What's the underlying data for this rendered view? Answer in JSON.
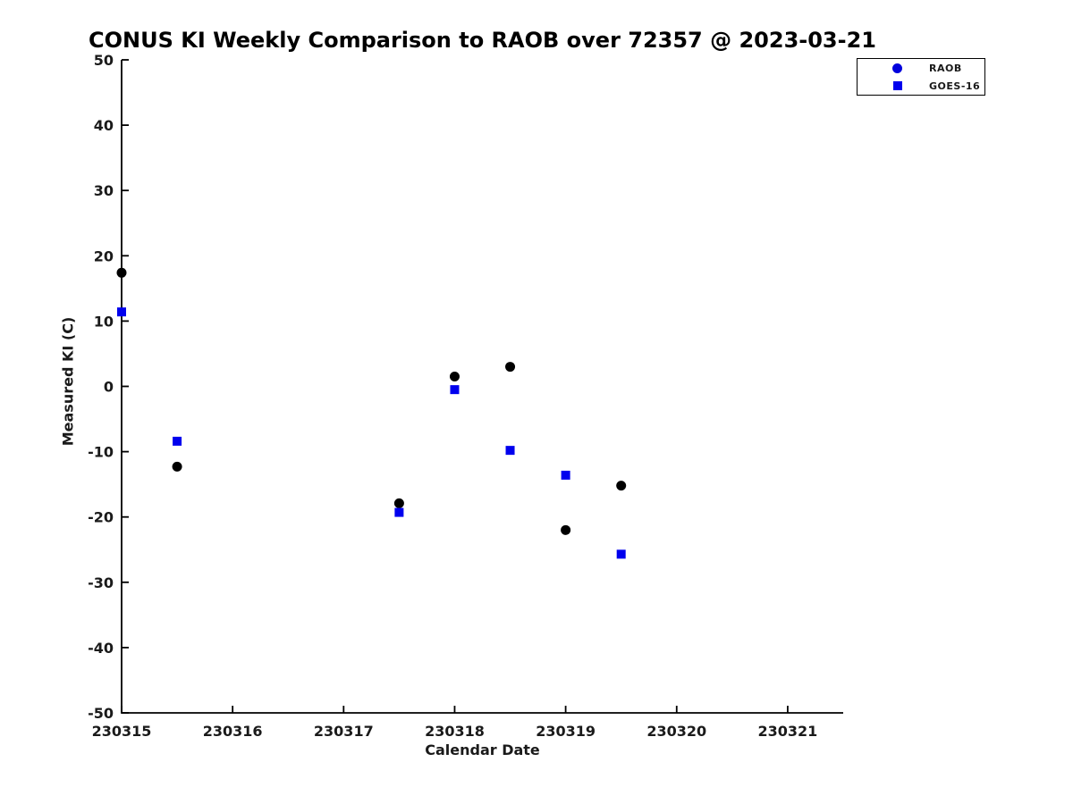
{
  "title": "CONUS KI Weekly Comparison to RAOB over 72357 @ 2023-03-21",
  "chart_data": {
    "type": "scatter",
    "title": "CONUS KI Weekly Comparison to RAOB over 72357 @ 2023-03-21",
    "xlabel": "Calendar Date",
    "ylabel": "Measured KI (C)",
    "xlim": [
      230315,
      230321.5
    ],
    "ylim": [
      -50,
      50
    ],
    "xticks": [
      230315,
      230316,
      230317,
      230318,
      230319,
      230320,
      230321
    ],
    "xtick_labels": [
      "230315",
      "230316",
      "230317",
      "230318",
      "230319",
      "230320",
      "230321"
    ],
    "yticks": [
      50,
      40,
      30,
      20,
      10,
      0,
      -10,
      -20,
      -30,
      -40,
      -50
    ],
    "grid": false,
    "legend_position": "outside-top-right",
    "axis_color": "#000000",
    "series": [
      {
        "name": "RAOB",
        "marker": "circle",
        "color": "#000000",
        "legend_marker_color": "#0000dd",
        "points": [
          [
            230315.0,
            17.4
          ],
          [
            230315.5,
            -12.3
          ],
          [
            230317.5,
            -17.9
          ],
          [
            230318.0,
            1.5
          ],
          [
            230318.5,
            3.0
          ],
          [
            230319.0,
            -22.0
          ],
          [
            230319.5,
            -15.2
          ]
        ]
      },
      {
        "name": "GOES-16",
        "marker": "square",
        "color": "#0000ee",
        "legend_marker_color": "#0000ee",
        "points": [
          [
            230315.0,
            11.4
          ],
          [
            230315.5,
            -8.4
          ],
          [
            230317.5,
            -19.3
          ],
          [
            230318.0,
            -0.5
          ],
          [
            230318.5,
            -9.8
          ],
          [
            230319.0,
            -13.6
          ],
          [
            230319.5,
            -25.7
          ]
        ]
      }
    ]
  }
}
